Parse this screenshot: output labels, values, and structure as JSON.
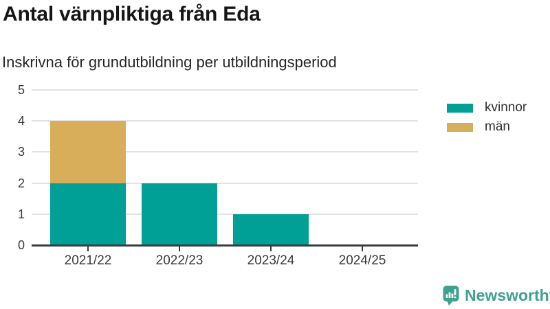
{
  "header": {
    "title": "Antal värnpliktiga från Eda",
    "subtitle": "Inskrivna för grundutbildning per utbildningsperiod"
  },
  "chart_data": {
    "type": "bar",
    "stacked": true,
    "title": "Antal värnpliktiga från Eda",
    "subtitle": "Inskrivna för grundutbildning per utbildningsperiod",
    "categories": [
      "2021/22",
      "2022/23",
      "2023/24",
      "2024/25"
    ],
    "series": [
      {
        "name": "kvinnor",
        "color": "#00a096",
        "values": [
          2,
          2,
          1,
          0
        ]
      },
      {
        "name": "män",
        "color": "#d9ae5a",
        "values": [
          2,
          0,
          0,
          0
        ]
      }
    ],
    "xlabel": "",
    "ylabel": "",
    "ylim": [
      0,
      5
    ],
    "yticks": [
      0,
      1,
      2,
      3,
      4,
      5
    ],
    "grid": true,
    "legend_position": "right"
  },
  "footer": {
    "brand": "Newsworthy",
    "brand_color": "#3fa191"
  },
  "colors": {
    "kvinnor": "#00a096",
    "man": "#d9ae5a",
    "gridline": "#e2e2e2",
    "axis": "#3b3b3b",
    "title_text": "#161616",
    "brand": "#3fa191"
  }
}
